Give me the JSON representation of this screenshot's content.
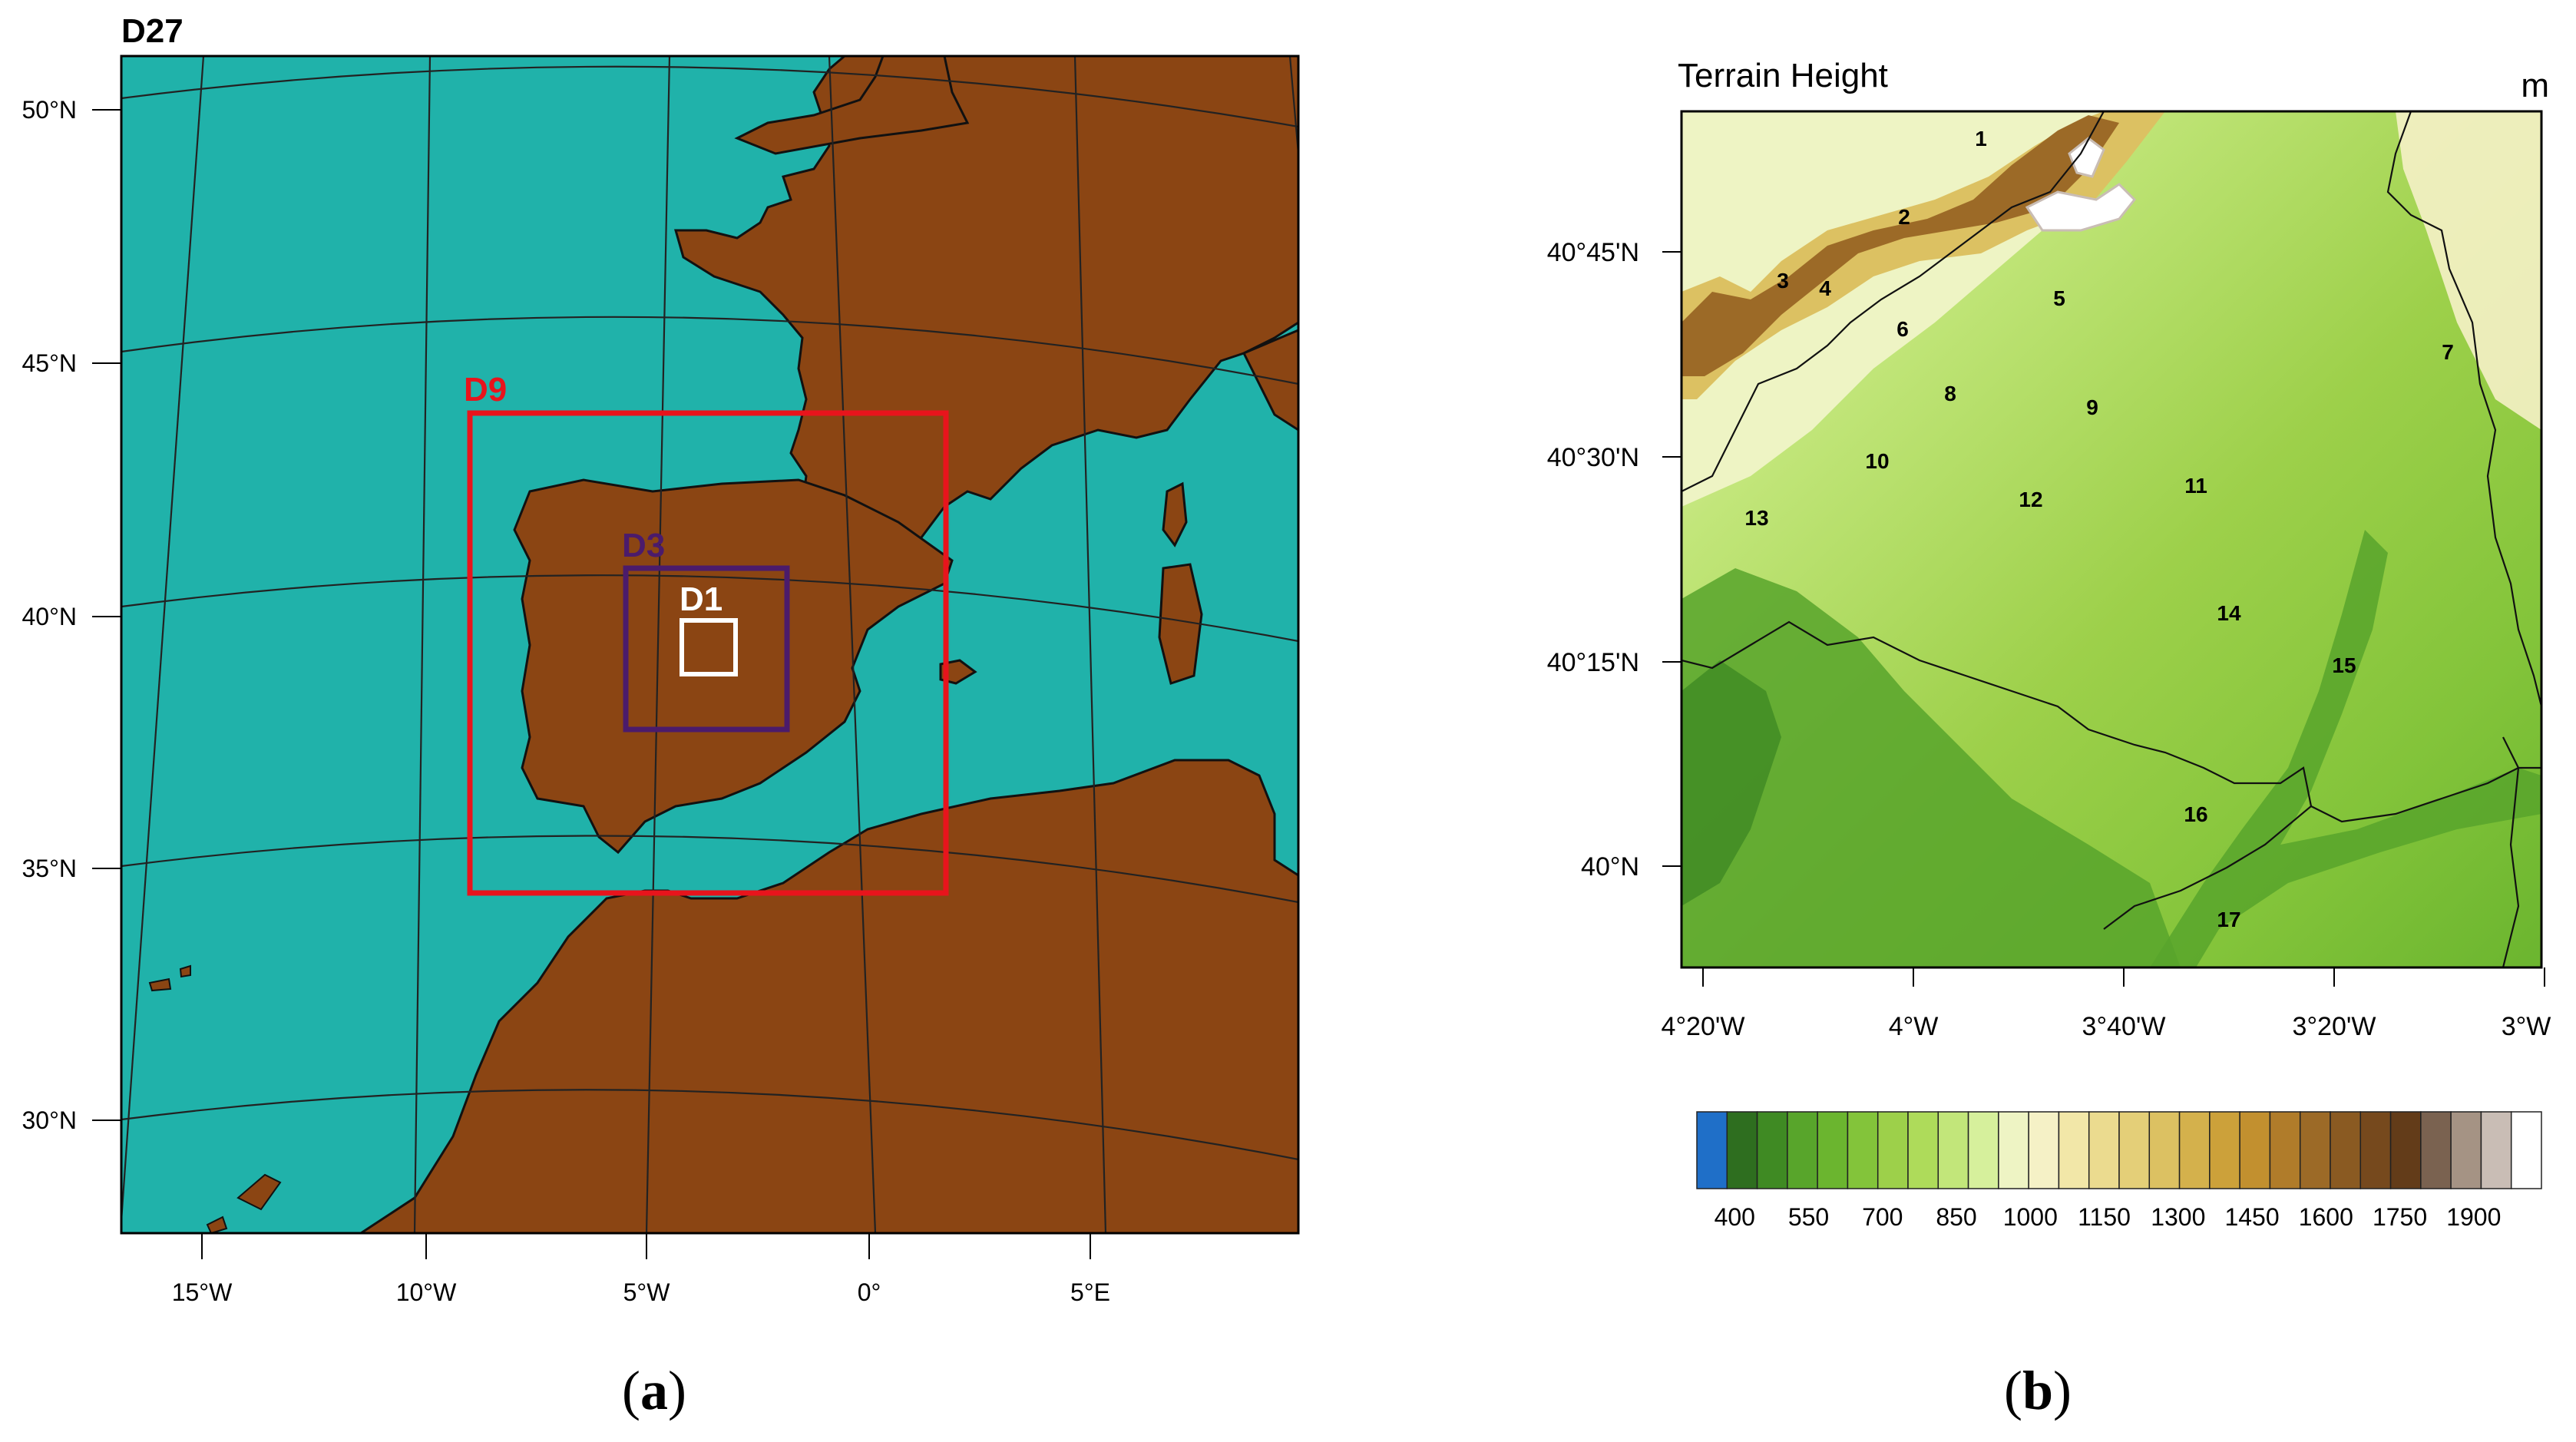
{
  "panel_a": {
    "title": "D27",
    "caption_open": "(",
    "caption_letter": "a",
    "caption_close": ")",
    "lat_labels": [
      "50°N",
      "45°N",
      "40°N",
      "35°N",
      "30°N"
    ],
    "lon_labels": [
      "15°W",
      "10°W",
      "5°W",
      "0°",
      "5°E"
    ],
    "domains": [
      {
        "label": "D9",
        "color": "#e8141c"
      },
      {
        "label": "D3",
        "color": "#4b1b6b"
      },
      {
        "label": "D1",
        "color": "#ffffff"
      }
    ],
    "colors": {
      "sea": "#20b2aa",
      "land": "#8b4513",
      "coast": "#111111"
    }
  },
  "panel_b": {
    "title": "Terrain Height",
    "unit": "m",
    "caption_open": "(",
    "caption_letter": "b",
    "caption_close": ")",
    "lat_labels": [
      "40°45'N",
      "40°30'N",
      "40°15'N",
      "40°N"
    ],
    "lon_labels": [
      "4°20'W",
      "4°W",
      "3°40'W",
      "3°20'W",
      "3°W"
    ],
    "site_labels": [
      "1",
      "2",
      "3",
      "4",
      "5",
      "6",
      "7",
      "8",
      "9",
      "10",
      "11",
      "12",
      "13",
      "14",
      "15",
      "16",
      "17"
    ],
    "colorbar_labels": [
      "400",
      "550",
      "700",
      "850",
      "1000",
      "1150",
      "1300",
      "1450",
      "1600",
      "1750",
      "1900"
    ],
    "colorbar_colors": [
      "#1f6fc8",
      "#2e6e1f",
      "#3f8a23",
      "#58a52b",
      "#6bb52f",
      "#83c43a",
      "#9dd04a",
      "#aedb5a",
      "#c2e67a",
      "#d6f09c",
      "#eef4c4",
      "#f5f1c6",
      "#f2e7a8",
      "#ebdb8f",
      "#e4cf78",
      "#dcc162",
      "#d4b14c",
      "#cca13a",
      "#c2902f",
      "#b07c2a",
      "#9c6a27",
      "#8a5a22",
      "#76491d",
      "#633c19",
      "#7a6250",
      "#a59384",
      "#c9bdb5",
      "#ffffff"
    ]
  }
}
